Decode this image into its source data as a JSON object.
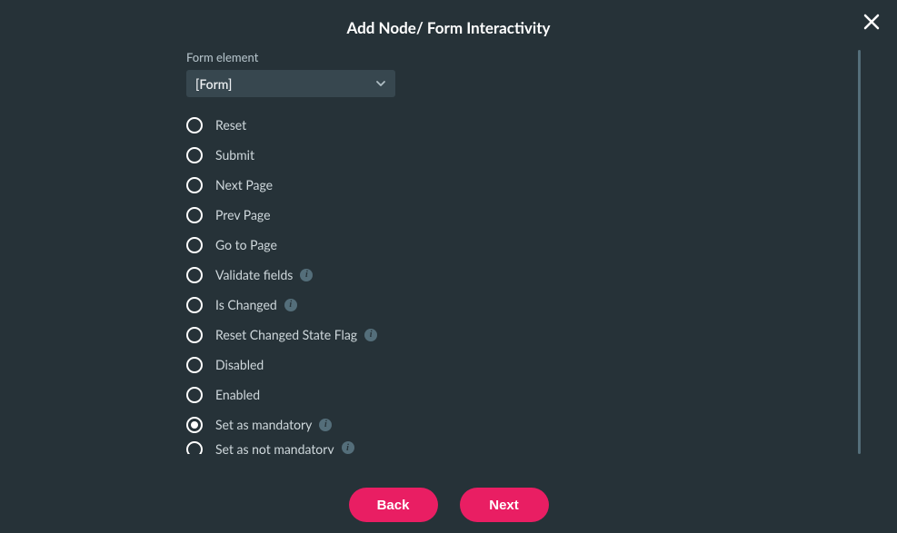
{
  "dialog": {
    "title": "Add Node/ Form Interactivity"
  },
  "form_element": {
    "label": "Form element",
    "selected": "[Form]"
  },
  "options": [
    {
      "label": "Reset",
      "selected": false,
      "info": false
    },
    {
      "label": "Submit",
      "selected": false,
      "info": false
    },
    {
      "label": "Next Page",
      "selected": false,
      "info": false
    },
    {
      "label": "Prev Page",
      "selected": false,
      "info": false
    },
    {
      "label": "Go to Page",
      "selected": false,
      "info": false
    },
    {
      "label": "Validate fields",
      "selected": false,
      "info": true
    },
    {
      "label": "Is Changed",
      "selected": false,
      "info": true
    },
    {
      "label": "Reset Changed State Flag",
      "selected": false,
      "info": true
    },
    {
      "label": "Disabled",
      "selected": false,
      "info": false
    },
    {
      "label": "Enabled",
      "selected": false,
      "info": false
    },
    {
      "label": "Set as mandatory",
      "selected": true,
      "info": true
    },
    {
      "label": "Set as not mandatory",
      "selected": false,
      "info": true
    }
  ],
  "footer": {
    "back": "Back",
    "next": "Next"
  },
  "colors": {
    "background": "#263238",
    "panel": "#37474f",
    "text_primary": "#ffffff",
    "text_secondary": "#cfd8dc",
    "text_muted": "#b0bec5",
    "accent": "#e91e63",
    "info_bg": "#546e7a",
    "scrollbar": "#546e7a"
  }
}
